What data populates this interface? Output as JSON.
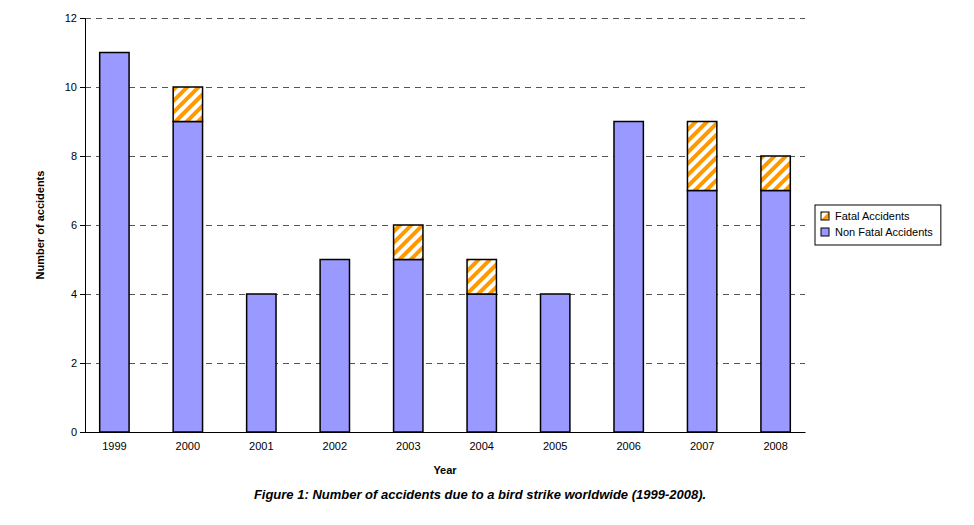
{
  "chart_data": {
    "type": "bar",
    "title": "Figure 1: Number of accidents due to a bird strike worldwide (1999-2008).",
    "x_label": "Year",
    "y_label": "Number of accidents",
    "categories": [
      "1999",
      "2000",
      "2001",
      "2002",
      "2003",
      "2004",
      "2005",
      "2006",
      "2007",
      "2008"
    ],
    "series": [
      {
        "name": "Non Fatal Accidents",
        "color": "#9999ff",
        "values": [
          11,
          9,
          4,
          5,
          5,
          4,
          4,
          9,
          7,
          7
        ]
      },
      {
        "name": "Fatal Accidents",
        "color": "#ff9900",
        "values": [
          0,
          1,
          0,
          0,
          1,
          1,
          0,
          0,
          2,
          1
        ]
      }
    ],
    "stacked": true,
    "ylim": [
      0,
      12
    ],
    "yticks": [
      0,
      2,
      4,
      6,
      8,
      10,
      12
    ],
    "grid": true,
    "legend": "right"
  }
}
